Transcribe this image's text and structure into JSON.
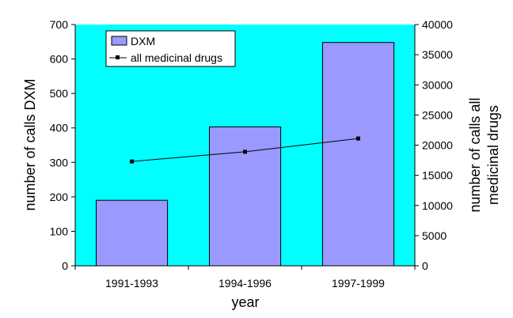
{
  "chart_data": {
    "type": "bar",
    "categories": [
      "1991-1993",
      "1994-1996",
      "1997-1999"
    ],
    "series": [
      {
        "name": "DXM",
        "type": "bar",
        "axis": "left",
        "values": [
          190,
          403,
          648
        ],
        "color": "#9999ff"
      },
      {
        "name": "all medicinal drugs",
        "type": "line",
        "axis": "right",
        "values": [
          17300,
          18900,
          21100
        ],
        "color": "#000000"
      }
    ],
    "xlabel": "year",
    "ylabel": "number of calls DXM",
    "ylabel_right": [
      "number of calls all",
      "medicinal drugs"
    ],
    "ylim": [
      0,
      700
    ],
    "yticks": [
      0,
      100,
      200,
      300,
      400,
      500,
      600,
      700
    ],
    "ylim_right": [
      0,
      40000
    ],
    "yticks_right": [
      0,
      5000,
      10000,
      15000,
      20000,
      25000,
      30000,
      35000,
      40000
    ],
    "plot_background": "#00ffff",
    "grid": false,
    "legend": "top-left"
  }
}
